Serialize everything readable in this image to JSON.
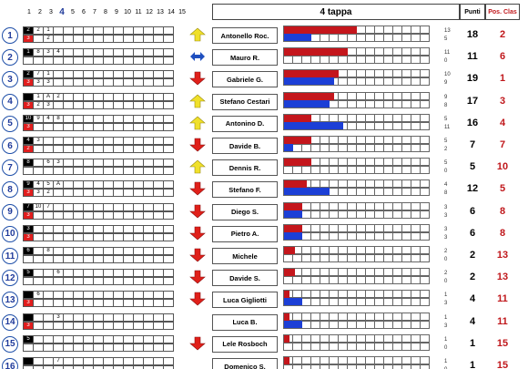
{
  "top_numbers": [
    "1",
    "2",
    "3",
    "4",
    "5",
    "6",
    "7",
    "8",
    "9",
    "10",
    "11",
    "12",
    "13",
    "14",
    "15"
  ],
  "highlight_number": "4",
  "header": {
    "tappa": "4 tappa",
    "punti": "Punti",
    "pos": "Pos. Clas"
  },
  "colors": {
    "red": "#c4161c",
    "blue": "#1c3fd6",
    "accent_red": "#c0181c",
    "circle": "#1f4fa8",
    "up_arrow": "#f0e02a",
    "down_arrow": "#e0201a",
    "side_arrow": "#1f4fbf"
  },
  "rows": [
    {
      "rank": "1",
      "black": [
        "2",
        "2",
        "1"
      ],
      "red": [
        "3",
        "",
        "2"
      ],
      "arrow": "up",
      "name": "Antonello Roc.",
      "red_bar": 8,
      "blue_bar": 3,
      "small_a": "13",
      "small_b": "5",
      "punti": "18",
      "pos": "2"
    },
    {
      "rank": "2",
      "black": [
        "1",
        "8",
        "3",
        "4"
      ],
      "red": [],
      "arrow": "side",
      "name": "Mauro R.",
      "red_bar": 7,
      "blue_bar": 0,
      "small_a": "11",
      "small_b": "0",
      "punti": "11",
      "pos": "6"
    },
    {
      "rank": "3",
      "black": [
        "2",
        "7",
        "1"
      ],
      "red": [
        "3",
        "3",
        "3"
      ],
      "arrow": "down",
      "name": "Gabriele G.",
      "red_bar": 6,
      "blue_bar": 5.5,
      "small_a": "10",
      "small_b": "9",
      "punti": "19",
      "pos": "1"
    },
    {
      "rank": "4",
      "black": [
        "",
        "1",
        "A",
        "2"
      ],
      "red": [
        "3",
        "2",
        "3"
      ],
      "arrow": "up",
      "name": "Stefano Cestari",
      "red_bar": 5.5,
      "blue_bar": 5,
      "small_a": "9",
      "small_b": "8",
      "punti": "17",
      "pos": "3"
    },
    {
      "rank": "5",
      "black": [
        "10",
        "9",
        "4",
        "8"
      ],
      "red": [
        "3"
      ],
      "arrow": "up",
      "name": "Antonino D.",
      "red_bar": 3,
      "blue_bar": 6.5,
      "small_a": "5",
      "small_b": "11",
      "punti": "16",
      "pos": "4"
    },
    {
      "rank": "6",
      "black": [
        "4",
        "3"
      ],
      "red": [
        "2"
      ],
      "arrow": "down",
      "name": "Davide B.",
      "red_bar": 3,
      "blue_bar": 1,
      "small_a": "5",
      "small_b": "2",
      "punti": "7",
      "pos": "7"
    },
    {
      "rank": "7",
      "black": [
        "8",
        "",
        "6",
        "3"
      ],
      "red": [],
      "arrow": "up",
      "name": "Dennis R.",
      "red_bar": 3,
      "blue_bar": 0,
      "small_a": "5",
      "small_b": "0",
      "punti": "5",
      "pos": "10"
    },
    {
      "rank": "8",
      "black": [
        "9",
        "4",
        "5",
        "A"
      ],
      "red": [
        "3",
        "3",
        "2"
      ],
      "arrow": "down",
      "name": "Stefano F.",
      "red_bar": 2.5,
      "blue_bar": 5,
      "small_a": "4",
      "small_b": "8",
      "punti": "12",
      "pos": "5"
    },
    {
      "rank": "9",
      "black": [
        "7",
        "10",
        "7"
      ],
      "red": [
        "3"
      ],
      "arrow": "down",
      "name": "Diego S.",
      "red_bar": 2,
      "blue_bar": 2,
      "small_a": "3",
      "small_b": "3",
      "punti": "6",
      "pos": "8"
    },
    {
      "rank": "10",
      "black": [
        "3"
      ],
      "red": [
        "3"
      ],
      "arrow": "down",
      "name": "Pietro A.",
      "red_bar": 2,
      "blue_bar": 2,
      "small_a": "3",
      "small_b": "3",
      "punti": "6",
      "pos": "8"
    },
    {
      "rank": "11",
      "black": [
        "6",
        "",
        "8"
      ],
      "red": [],
      "arrow": "down",
      "name": "Michele",
      "red_bar": 1.2,
      "blue_bar": 0,
      "small_a": "2",
      "small_b": "0",
      "punti": "2",
      "pos": "13"
    },
    {
      "rank": "12",
      "black": [
        "5",
        "",
        "",
        "6"
      ],
      "red": [],
      "arrow": "down",
      "name": "Davide S.",
      "red_bar": 1.2,
      "blue_bar": 0,
      "small_a": "2",
      "small_b": "0",
      "punti": "2",
      "pos": "13"
    },
    {
      "rank": "13",
      "black": [
        "",
        "6"
      ],
      "red": [
        "3"
      ],
      "arrow": "down",
      "name": "Luca Gigliotti",
      "red_bar": 0.6,
      "blue_bar": 2,
      "small_a": "1",
      "small_b": "3",
      "punti": "4",
      "pos": "11"
    },
    {
      "rank": "14",
      "black": [
        "",
        "",
        "",
        "3"
      ],
      "red": [
        "3"
      ],
      "arrow": "none",
      "name": "Luca B.",
      "red_bar": 0.6,
      "blue_bar": 2,
      "small_a": "1",
      "small_b": "3",
      "punti": "4",
      "pos": "11"
    },
    {
      "rank": "15",
      "black": [
        "5"
      ],
      "red": [],
      "arrow": "down",
      "name": "Lele Rosboch",
      "red_bar": 0.6,
      "blue_bar": 0,
      "small_a": "1",
      "small_b": "0",
      "punti": "1",
      "pos": "15"
    },
    {
      "rank": "16",
      "black": [
        "",
        "",
        "",
        "7"
      ],
      "red": [],
      "arrow": "none",
      "name": "Domenico S.",
      "red_bar": 0.6,
      "blue_bar": 0,
      "small_a": "1",
      "small_b": "0",
      "punti": "1",
      "pos": "15"
    }
  ]
}
